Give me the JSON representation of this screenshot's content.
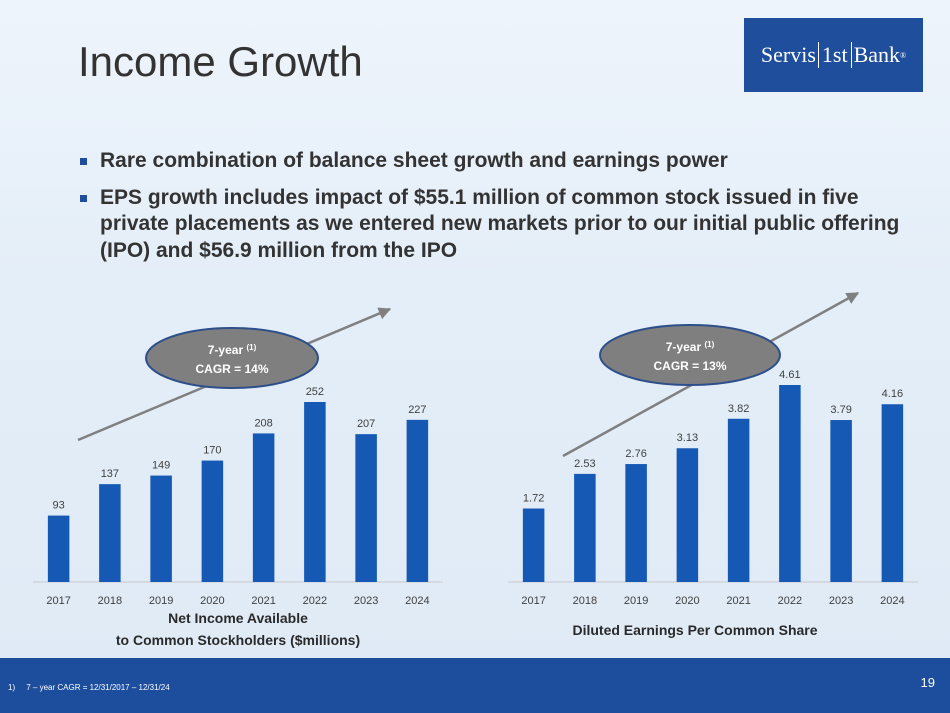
{
  "slide": {
    "title": "Income Growth",
    "logo": {
      "part1": "Servis",
      "part2": "1st",
      "part3": "Bank",
      "mark": "®"
    },
    "bullets": [
      "Rare combination of balance sheet growth and earnings power",
      "EPS growth includes impact of $55.1 million of common stock issued in five private placements as we entered new markets prior to our initial public offering (IPO) and $56.9 million from the IPO"
    ],
    "footnote": "1)     7 – year CAGR = 12/31/2017 – 12/31/24",
    "page_number": "19"
  },
  "colors": {
    "bar": "#1559b5",
    "arrow": "#808080",
    "ellipse": "#7f7f7f",
    "footer": "#1d4e9e"
  },
  "chart_data": [
    {
      "type": "bar",
      "categories": [
        "2017",
        "2018",
        "2019",
        "2020",
        "2021",
        "2022",
        "2023",
        "2024"
      ],
      "values": [
        93,
        137,
        149,
        170,
        208,
        252,
        207,
        227
      ],
      "data_labels": [
        "93",
        "137",
        "149",
        "170",
        "208",
        "252",
        "207",
        "227"
      ],
      "title_lines": [
        "Net Income Available",
        "to Common Stockholders ($millions)"
      ],
      "callout_lines": [
        "7-year",
        "(1)",
        "CAGR = 14%"
      ],
      "ylim": [
        0,
        252
      ],
      "grid": false,
      "legend": "none"
    },
    {
      "type": "bar",
      "categories": [
        "2017",
        "2018",
        "2019",
        "2020",
        "2021",
        "2022",
        "2023",
        "2024"
      ],
      "values": [
        1.72,
        2.53,
        2.76,
        3.13,
        3.82,
        4.61,
        3.79,
        4.16
      ],
      "data_labels": [
        "1.72",
        "2.53",
        "2.76",
        "3.13",
        "3.82",
        "4.61",
        "3.79",
        "4.16"
      ],
      "title_lines": [
        "Diluted Earnings Per Common Share"
      ],
      "callout_lines": [
        "7-year",
        "(1)",
        "CAGR = 13%"
      ],
      "ylim": [
        0,
        4.61
      ],
      "grid": false,
      "legend": "none"
    }
  ]
}
